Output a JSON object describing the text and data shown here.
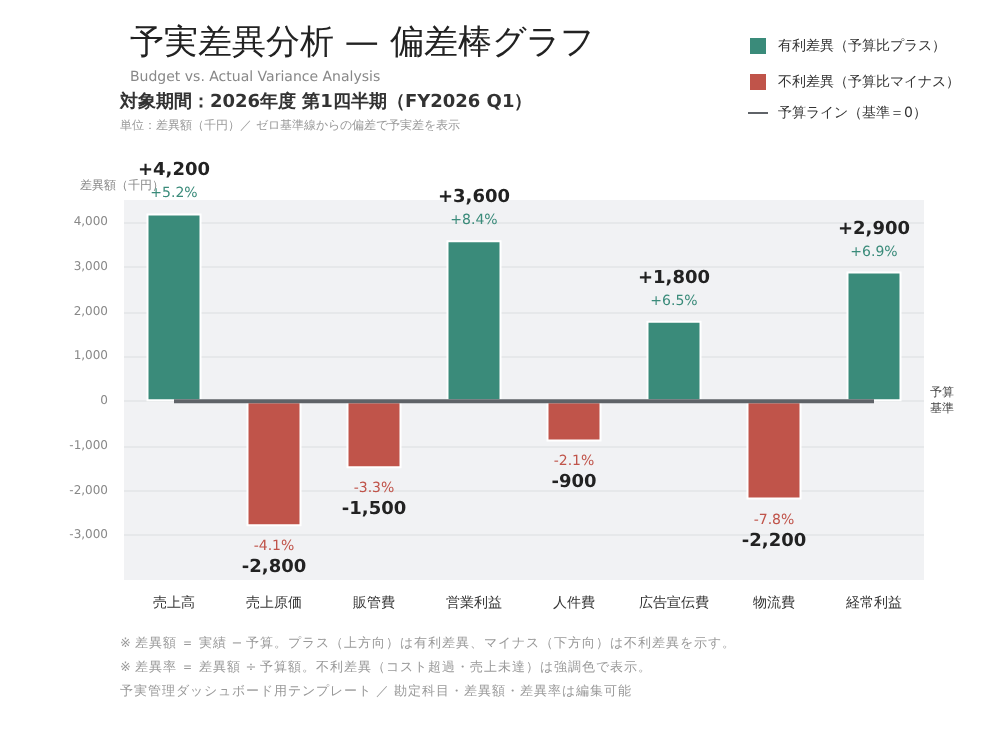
{
  "chart_data": {
    "type": "bar",
    "title": "予実差異分析 — 偏差棒グラフ",
    "subtitle": "Budget vs. Actual Variance Analysis",
    "ylabel": "差異額（千円）",
    "categories": [
      "売上高",
      "売上原価",
      "販管費",
      "営業利益",
      "人件費",
      "広告宣伝費",
      "物流費",
      "経常利益"
    ],
    "series": [
      {
        "name": "有利差異（予算比プラス）",
        "color": "#3a8b7a",
        "values": [
          4200,
          null,
          null,
          3600,
          null,
          1800,
          null,
          2900
        ],
        "value_labels": [
          "+4,200\n+5.2%",
          null,
          null,
          "+3,600\n+8.4%",
          null,
          "+1,800\n+6.5%",
          null,
          "+2,900\n+6.9%"
        ]
      },
      {
        "name": "不利差異（予算比マイナス）",
        "color": "#c0544a",
        "values": [
          null,
          -2800,
          -1500,
          null,
          -900,
          null,
          -2200,
          null
        ],
        "value_labels": [
          null,
          "-4.1%\n-2,800",
          "-3.3%\n-1,500",
          null,
          "-2.1%\n-900",
          null,
          "-7.8%\n-2,200",
          null
        ]
      },
      {
        "type": "line",
        "name": "予算ライン（基準＝0）",
        "color": "#5f6368",
        "values": [
          0,
          0,
          0,
          0,
          0,
          0,
          0,
          0
        ]
      }
    ],
    "ylim": [
      -4000,
      4500
    ],
    "yticks": [
      {
        "value": -3000,
        "label": "-3,000"
      },
      {
        "value": -2000,
        "label": "-2,000"
      },
      {
        "value": -1000,
        "label": "-1,000"
      },
      0,
      {
        "value": 1000,
        "label": "1,000"
      },
      {
        "value": 2000,
        "label": "2,000"
      },
      {
        "value": 3000,
        "label": "3,000"
      },
      {
        "value": 4000,
        "label": "4,000"
      }
    ],
    "grid": "y",
    "legend": "top right",
    "marker": "none",
    "annotations": [
      "対象期間：2026年度 第1四半期（FY2026 Q1）",
      "単位：差異額（千円）／ ゼロ基準線からの偏差で予実差を表示",
      "予算基準",
      "※ 差異額 ＝ 実績 − 予算。プラス（上方向）は有利差異、マイナス（下方向）は不利差異を示す。",
      "※ 差異率 ＝ 差異額 ÷ 予算額。不利差異（コスト超過・売上未達）は強調色で表示。",
      "予実管理ダッシュボード用テンプレート ／ 勘定科目・差異額・差異率は編集可能"
    ]
  }
}
